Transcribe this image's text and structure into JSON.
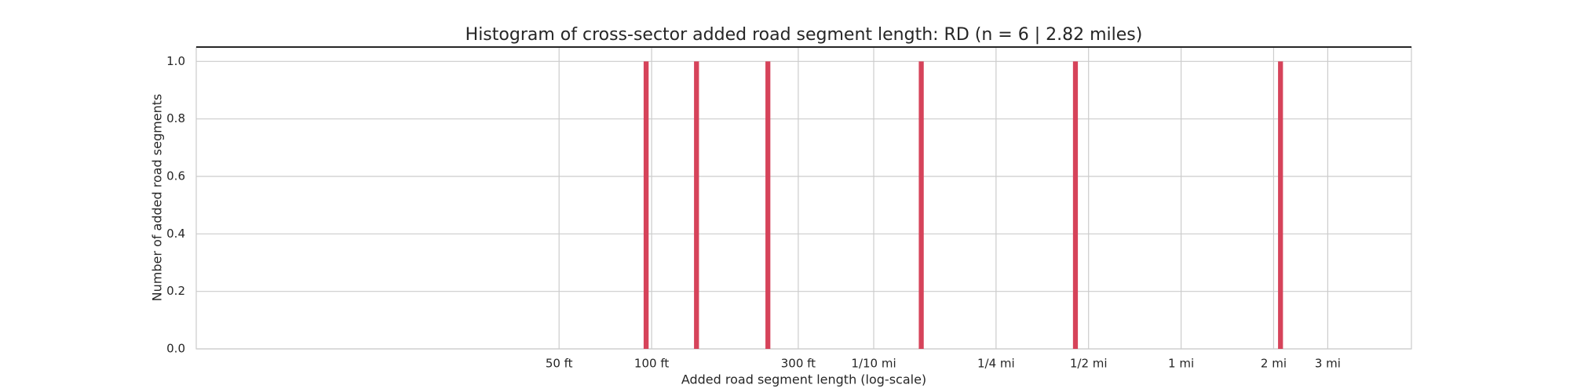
{
  "chart_data": {
    "type": "histogram",
    "title": "Histogram of cross-sector added road segment length: RD (n = 6 | 2.82 miles)",
    "x_label": "Added road segment length (log-scale)",
    "y_label": "Number of added road segments",
    "bins": [
      94.2,
      97.8,
      137.4,
      142.6,
      234.6,
      243.4,
      740,
      768,
      2349,
      2437,
      10916,
      11326
    ],
    "counts": [
      1,
      0,
      1,
      0,
      1,
      0,
      1,
      0,
      1,
      0,
      1
    ],
    "color": "#d6435a",
    "xscale": "log",
    "xlim": [
      3.3,
      29650
    ],
    "xticks": [
      {
        "value": 50,
        "label": "50 ft"
      },
      {
        "value": 100,
        "label": "100 ft"
      },
      {
        "value": 300,
        "label": "300 ft"
      },
      {
        "value": 528,
        "label": "1/10 mi"
      },
      {
        "value": 1320,
        "label": "1/4 mi"
      },
      {
        "value": 2640,
        "label": "1/2 mi"
      },
      {
        "value": 5280,
        "label": "1 mi"
      },
      {
        "value": 10560,
        "label": "2 mi"
      },
      {
        "value": 15840,
        "label": "3 mi"
      }
    ],
    "ylim": [
      0,
      1.05
    ],
    "yticks": [
      {
        "value": 0,
        "label": "0.0"
      },
      {
        "value": 0.2,
        "label": "0.2"
      },
      {
        "value": 0.4,
        "label": "0.4"
      },
      {
        "value": 0.6,
        "label": "0.6"
      },
      {
        "value": 0.8,
        "label": "0.8"
      },
      {
        "value": 1,
        "label": "1.0"
      }
    ],
    "grid": true
  }
}
